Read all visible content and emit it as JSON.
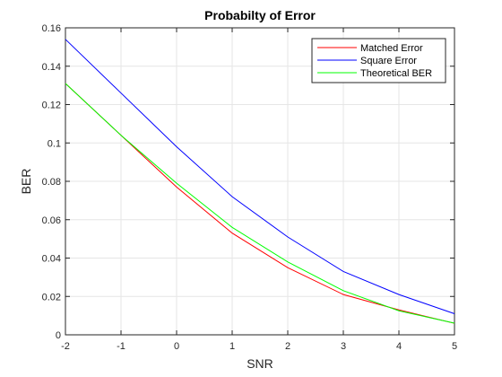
{
  "chart_data": {
    "type": "line",
    "title": "Probabilty of Error",
    "xlabel": "SNR",
    "ylabel": "BER",
    "x": [
      -2,
      -1,
      0,
      1,
      2,
      3,
      4,
      5
    ],
    "xlim": [
      -2,
      5
    ],
    "ylim": [
      0,
      0.16
    ],
    "xticks": [
      "-2",
      "-1",
      "0",
      "1",
      "2",
      "3",
      "4",
      "5"
    ],
    "yticks": [
      "0",
      "0.02",
      "0.04",
      "0.06",
      "0.08",
      "0.1",
      "0.12",
      "0.14",
      "0.16"
    ],
    "grid": true,
    "legend_position": "top-right",
    "series": [
      {
        "name": "Matched Error",
        "color": "#ff0000",
        "values": [
          0.131,
          0.104,
          0.077,
          0.053,
          0.035,
          0.021,
          0.013,
          0.006
        ]
      },
      {
        "name": "Square Error",
        "color": "#0000ff",
        "values": [
          0.154,
          0.126,
          0.098,
          0.072,
          0.051,
          0.033,
          0.021,
          0.011
        ]
      },
      {
        "name": "Theoretical BER",
        "color": "#00ff00",
        "values": [
          0.131,
          0.104,
          0.079,
          0.056,
          0.038,
          0.023,
          0.0125,
          0.0061
        ]
      }
    ]
  }
}
